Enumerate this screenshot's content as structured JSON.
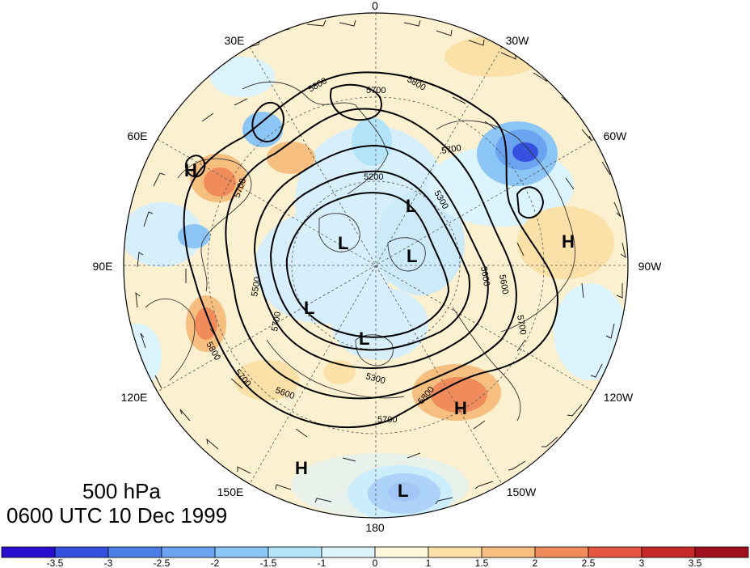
{
  "title": {
    "level": "500 hPa",
    "time": "0600 UTC 10 Dec 1999"
  },
  "longitude_labels": [
    "0",
    "30W",
    "60W",
    "90W",
    "120W",
    "150W",
    "180",
    "150E",
    "120E",
    "90E",
    "60E",
    "30E"
  ],
  "contour_labels": [
    "5200",
    "5300",
    "5500",
    "5600",
    "5700",
    "5800"
  ],
  "pressure_centers": {
    "high": "H",
    "low": "L"
  },
  "colorbar": {
    "ticks": [
      "-3.5",
      "-3",
      "-2.5",
      "-2",
      "-1.5",
      "-1",
      "0",
      "1",
      "1.5",
      "2",
      "2.5",
      "3",
      "3.5"
    ],
    "colors": [
      "#2a0ecf",
      "#3650e0",
      "#4d7fe8",
      "#6aa3f0",
      "#8cc6f6",
      "#b4e4fa",
      "#dcf4fd",
      "#fff7dc",
      "#fbe0a8",
      "#f6bf80",
      "#f08c5c",
      "#e45640",
      "#c82a2a",
      "#a0101c"
    ]
  }
}
